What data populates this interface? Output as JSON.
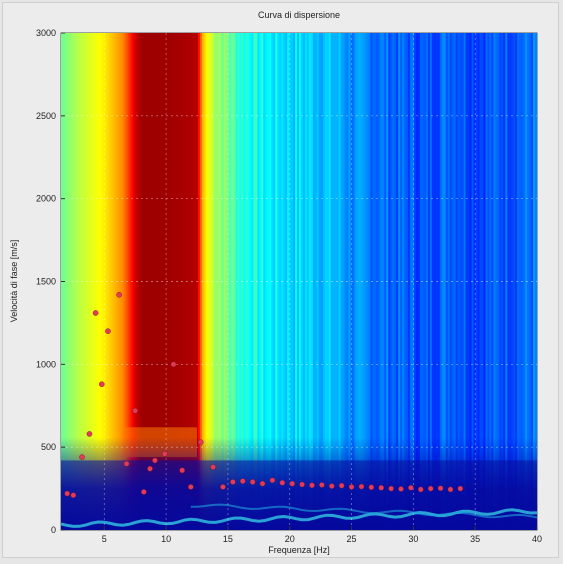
{
  "chart_data": {
    "type": "heatmap",
    "title": "Curva di dispersione",
    "xlabel": "Frequenza [Hz]",
    "ylabel": "Velocità di fase [m/s]",
    "xlim": [
      1.5,
      40
    ],
    "ylim": [
      0,
      3000
    ],
    "x_ticks": [
      5,
      10,
      15,
      20,
      25,
      30,
      35,
      40
    ],
    "y_ticks": [
      0,
      500,
      1000,
      1500,
      2000,
      2500,
      3000
    ],
    "grid": true,
    "colormap": "jet",
    "colors": {
      "dark_red": "#8b0000",
      "red": "#e8000b",
      "orange": "#ff8c00",
      "yellow": "#ffe600",
      "cyan": "#25d8d8",
      "blue": "#1a7fe6",
      "dark_blue": "#0a0f9e",
      "picks": "#e23b5a"
    },
    "picked_points": {
      "x": [
        2.0,
        2.5,
        3.2,
        3.8,
        4.3,
        4.8,
        5.3,
        6.2,
        6.8,
        7.5,
        8.2,
        8.7,
        9.1,
        9.9,
        10.6,
        11.3,
        12.0,
        12.8,
        13.8,
        14.6,
        15.4,
        16.2,
        17.0,
        17.8,
        18.6,
        19.4,
        20.2,
        21.0,
        21.8,
        22.6,
        23.4,
        24.2,
        25.0,
        25.8,
        26.6,
        27.4,
        28.2,
        29.0,
        29.8,
        30.6,
        31.4,
        32.2,
        33.0,
        33.8
      ],
      "y": [
        220,
        210,
        440,
        580,
        1310,
        880,
        1200,
        1420,
        400,
        720,
        230,
        370,
        420,
        460,
        1000,
        360,
        260,
        530,
        380,
        260,
        290,
        295,
        290,
        280,
        300,
        285,
        280,
        275,
        270,
        272,
        265,
        268,
        260,
        262,
        258,
        255,
        250,
        248,
        255,
        245,
        250,
        252,
        245,
        250
      ]
    },
    "intensity_by_frequency": {
      "x": [
        1.5,
        3.0,
        5.0,
        6.5,
        7.0,
        7.5,
        8.0,
        10.0,
        12.5,
        13.0,
        13.5,
        14.0,
        16.0,
        18.0,
        20.0,
        22.0,
        24.0,
        25.0,
        27.0,
        29.0,
        31.0,
        33.0,
        35.0,
        38.0,
        40.0
      ],
      "value": [
        0.48,
        0.56,
        0.64,
        0.74,
        0.82,
        0.92,
        0.97,
        0.97,
        0.95,
        0.68,
        0.6,
        0.55,
        0.42,
        0.37,
        0.34,
        0.33,
        0.3,
        0.26,
        0.24,
        0.22,
        0.2,
        0.24,
        0.2,
        0.22,
        0.24
      ]
    }
  }
}
